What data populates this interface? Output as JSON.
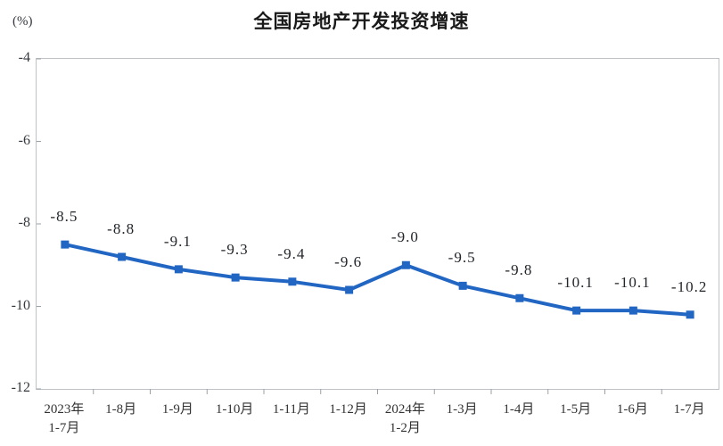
{
  "chart_data": {
    "type": "line",
    "title": "全国房地产开发投资增速",
    "unit_label": "(%)",
    "xlabel": "",
    "ylabel": "(%)",
    "categories": [
      "2023年\n1-7月",
      "1-8月",
      "1-9月",
      "1-10月",
      "1-11月",
      "1-12月",
      "2024年\n1-2月",
      "1-3月",
      "1-4月",
      "1-5月",
      "1-6月",
      "1-7月"
    ],
    "values": [
      -8.5,
      -8.8,
      -9.1,
      -9.3,
      -9.4,
      -9.6,
      -9.0,
      -9.5,
      -9.8,
      -10.1,
      -10.1,
      -10.2
    ],
    "labels": [
      "-8.5",
      "-8.8",
      "-9.1",
      "-9.3",
      "-9.4",
      "-9.6",
      "-9.0",
      "-9.5",
      "-9.8",
      "-10.1",
      "-10.1",
      "-10.2"
    ],
    "yticks": [
      -4,
      -6,
      -8,
      -10,
      -12
    ],
    "ytick_labels": [
      "-4",
      "-6",
      "-8",
      "-10",
      "-12"
    ],
    "ylim": [
      -12,
      -4
    ],
    "grid": false,
    "legend_position": "none",
    "series_name": "全国房地产开发投资增速",
    "colors": {
      "line": "#2266c4",
      "marker": "#2266c4",
      "plot_border": "#bfc3c7",
      "tick": "#9aa0a6",
      "text": "#333333",
      "title_text": "#1a1a1a",
      "background": "#ffffff"
    }
  }
}
